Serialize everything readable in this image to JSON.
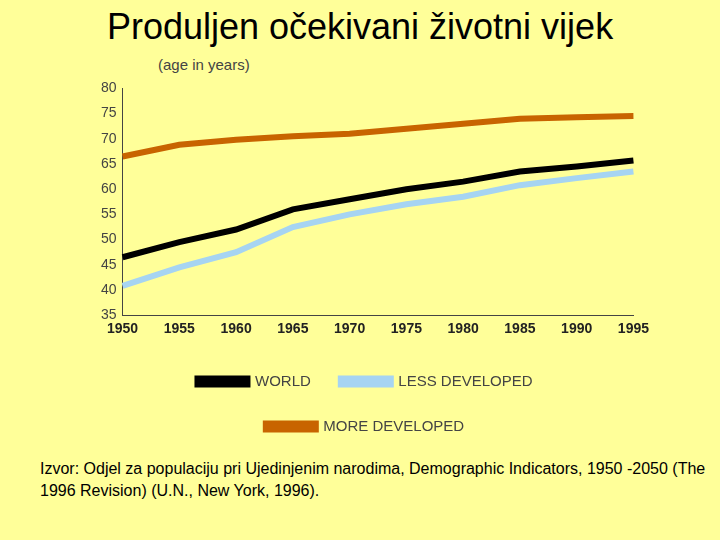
{
  "chart_data": {
    "type": "line",
    "title": "Produljen očekivani životni vijek",
    "y_label": "(age in years)",
    "annotation": "Izvor: Odjel za populaciju pri Ujedinjenim narodima, Demographic Indicators, 1950 -2050 (The 1996 Revision) (U.N., New York, 1996).",
    "categories": [
      "1950",
      "1955",
      "1960",
      "1965",
      "1970",
      "1975",
      "1980",
      "1985",
      "1990",
      "1995"
    ],
    "series": [
      {
        "name": "WORLD",
        "color": "#000000",
        "values": [
          46.5,
          49.5,
          52,
          56,
          58,
          60,
          61.5,
          63.5,
          64.5,
          65.7
        ]
      },
      {
        "name": "LESS DEVELOPED",
        "color": "#a6d4f2",
        "values": [
          40.8,
          44.5,
          47.5,
          52.5,
          55,
          57,
          58.5,
          60.8,
          62.2,
          63.5
        ]
      },
      {
        "name": "MORE DEVELOPED",
        "color": "#c86400",
        "values": [
          66.5,
          68.8,
          69.8,
          70.5,
          71,
          72,
          73,
          74,
          74.3,
          74.5
        ]
      }
    ],
    "ylim": [
      35,
      80
    ],
    "yticks": [
      35,
      40,
      45,
      50,
      55,
      60,
      65,
      70,
      75,
      80
    ],
    "grid": false,
    "legend": "bottom"
  }
}
